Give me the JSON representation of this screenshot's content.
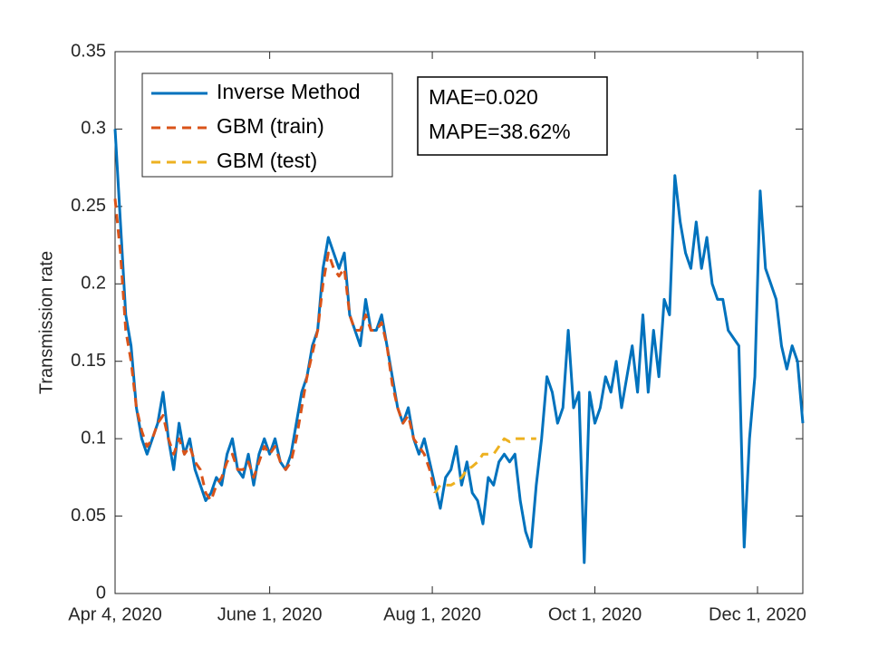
{
  "chart_data": {
    "type": "line",
    "ylabel": "Transmission rate",
    "xlim": [
      "2020-04-04",
      "2020-12-18"
    ],
    "xticks": [
      {
        "value": "2020-04-04",
        "label": "Apr 4, 2020"
      },
      {
        "value": "2020-06-01",
        "label": "June 1, 2020"
      },
      {
        "value": "2020-08-01",
        "label": "Aug 1, 2020"
      },
      {
        "value": "2020-10-01",
        "label": "Oct 1, 2020"
      },
      {
        "value": "2020-12-01",
        "label": "Dec 1, 2020"
      }
    ],
    "ylim": [
      0,
      0.35
    ],
    "yticks": [
      0,
      0.05,
      0.1,
      0.15,
      0.2,
      0.25,
      0.3,
      0.35
    ],
    "grid": false,
    "legend": "upper left",
    "annotations": [
      "MAE=0.020",
      "MAPE=38.62%"
    ],
    "series": [
      {
        "name": "Inverse Method",
        "color": "#0072BD",
        "dash": false,
        "x": [
          "2020-04-04",
          "2020-04-06",
          "2020-04-08",
          "2020-04-10",
          "2020-04-12",
          "2020-04-14",
          "2020-04-16",
          "2020-04-18",
          "2020-04-20",
          "2020-04-22",
          "2020-04-24",
          "2020-04-26",
          "2020-04-28",
          "2020-04-30",
          "2020-05-02",
          "2020-05-04",
          "2020-05-06",
          "2020-05-08",
          "2020-05-10",
          "2020-05-12",
          "2020-05-14",
          "2020-05-16",
          "2020-05-18",
          "2020-05-20",
          "2020-05-22",
          "2020-05-24",
          "2020-05-26",
          "2020-05-28",
          "2020-05-30",
          "2020-06-01",
          "2020-06-03",
          "2020-06-05",
          "2020-06-07",
          "2020-06-09",
          "2020-06-11",
          "2020-06-13",
          "2020-06-15",
          "2020-06-17",
          "2020-06-19",
          "2020-06-21",
          "2020-06-23",
          "2020-06-25",
          "2020-06-27",
          "2020-06-29",
          "2020-07-01",
          "2020-07-03",
          "2020-07-05",
          "2020-07-07",
          "2020-07-09",
          "2020-07-11",
          "2020-07-13",
          "2020-07-15",
          "2020-07-17",
          "2020-07-19",
          "2020-07-21",
          "2020-07-23",
          "2020-07-25",
          "2020-07-27",
          "2020-07-29",
          "2020-07-31",
          "2020-08-02",
          "2020-08-04",
          "2020-08-06",
          "2020-08-08",
          "2020-08-10",
          "2020-08-12",
          "2020-08-14",
          "2020-08-16",
          "2020-08-18",
          "2020-08-20",
          "2020-08-22",
          "2020-08-24",
          "2020-08-26",
          "2020-08-28",
          "2020-08-30",
          "2020-09-01",
          "2020-09-03",
          "2020-09-05",
          "2020-09-07",
          "2020-09-09",
          "2020-09-11",
          "2020-09-13",
          "2020-09-15",
          "2020-09-17",
          "2020-09-19",
          "2020-09-21",
          "2020-09-23",
          "2020-09-25",
          "2020-09-27",
          "2020-09-29",
          "2020-10-01",
          "2020-10-03",
          "2020-10-05",
          "2020-10-07",
          "2020-10-09",
          "2020-10-11",
          "2020-10-13",
          "2020-10-15",
          "2020-10-17",
          "2020-10-19",
          "2020-10-21",
          "2020-10-23",
          "2020-10-25",
          "2020-10-27",
          "2020-10-29",
          "2020-10-31",
          "2020-11-02",
          "2020-11-04",
          "2020-11-06",
          "2020-11-08",
          "2020-11-10",
          "2020-11-12",
          "2020-11-14",
          "2020-11-16",
          "2020-11-18",
          "2020-11-20",
          "2020-11-22",
          "2020-11-24",
          "2020-11-26",
          "2020-11-28",
          "2020-11-30",
          "2020-12-02",
          "2020-12-04",
          "2020-12-06",
          "2020-12-08",
          "2020-12-10",
          "2020-12-12",
          "2020-12-14",
          "2020-12-16",
          "2020-12-18"
        ],
        "values": [
          0.3,
          0.24,
          0.18,
          0.16,
          0.12,
          0.1,
          0.09,
          0.1,
          0.11,
          0.13,
          0.1,
          0.08,
          0.11,
          0.09,
          0.1,
          0.08,
          0.07,
          0.06,
          0.065,
          0.075,
          0.07,
          0.09,
          0.1,
          0.08,
          0.075,
          0.09,
          0.07,
          0.09,
          0.1,
          0.09,
          0.1,
          0.085,
          0.08,
          0.09,
          0.11,
          0.13,
          0.14,
          0.16,
          0.17,
          0.21,
          0.23,
          0.22,
          0.21,
          0.22,
          0.18,
          0.17,
          0.16,
          0.19,
          0.17,
          0.17,
          0.18,
          0.16,
          0.14,
          0.12,
          0.11,
          0.12,
          0.1,
          0.09,
          0.1,
          0.085,
          0.07,
          0.055,
          0.075,
          0.08,
          0.095,
          0.07,
          0.085,
          0.065,
          0.06,
          0.045,
          0.075,
          0.07,
          0.085,
          0.09,
          0.085,
          0.09,
          0.06,
          0.04,
          0.03,
          0.07,
          0.1,
          0.14,
          0.13,
          0.11,
          0.12,
          0.17,
          0.12,
          0.13,
          0.02,
          0.13,
          0.11,
          0.12,
          0.14,
          0.13,
          0.15,
          0.12,
          0.14,
          0.16,
          0.13,
          0.18,
          0.13,
          0.17,
          0.14,
          0.19,
          0.18,
          0.27,
          0.24,
          0.22,
          0.21,
          0.24,
          0.21,
          0.23,
          0.2,
          0.19,
          0.19,
          0.17,
          0.165,
          0.16,
          0.03,
          0.1,
          0.14,
          0.26,
          0.21,
          0.2,
          0.19,
          0.16,
          0.145,
          0.16,
          0.15,
          0.11
        ]
      },
      {
        "name": "GBM (train)",
        "color": "#D95319",
        "dash": true,
        "x": [
          "2020-04-04",
          "2020-04-06",
          "2020-04-08",
          "2020-04-10",
          "2020-04-12",
          "2020-04-14",
          "2020-04-16",
          "2020-04-18",
          "2020-04-20",
          "2020-04-22",
          "2020-04-24",
          "2020-04-26",
          "2020-04-28",
          "2020-04-30",
          "2020-05-02",
          "2020-05-04",
          "2020-05-06",
          "2020-05-08",
          "2020-05-10",
          "2020-05-12",
          "2020-05-14",
          "2020-05-16",
          "2020-05-18",
          "2020-05-20",
          "2020-05-22",
          "2020-05-24",
          "2020-05-26",
          "2020-05-28",
          "2020-05-30",
          "2020-06-01",
          "2020-06-03",
          "2020-06-05",
          "2020-06-07",
          "2020-06-09",
          "2020-06-11",
          "2020-06-13",
          "2020-06-15",
          "2020-06-17",
          "2020-06-19",
          "2020-06-21",
          "2020-06-23",
          "2020-06-25",
          "2020-06-27",
          "2020-06-29",
          "2020-07-01",
          "2020-07-03",
          "2020-07-05",
          "2020-07-07",
          "2020-07-09",
          "2020-07-11",
          "2020-07-13",
          "2020-07-15",
          "2020-07-17",
          "2020-07-19",
          "2020-07-21",
          "2020-07-23",
          "2020-07-25",
          "2020-07-27",
          "2020-07-29",
          "2020-07-31",
          "2020-08-02"
        ],
        "values": [
          0.255,
          0.22,
          0.17,
          0.15,
          0.12,
          0.105,
          0.095,
          0.1,
          0.11,
          0.115,
          0.1,
          0.09,
          0.1,
          0.09,
          0.095,
          0.085,
          0.08,
          0.065,
          0.06,
          0.07,
          0.075,
          0.085,
          0.09,
          0.08,
          0.08,
          0.085,
          0.075,
          0.085,
          0.095,
          0.09,
          0.095,
          0.085,
          0.08,
          0.085,
          0.1,
          0.12,
          0.14,
          0.155,
          0.17,
          0.2,
          0.22,
          0.21,
          0.205,
          0.21,
          0.18,
          0.17,
          0.17,
          0.18,
          0.17,
          0.17,
          0.175,
          0.16,
          0.135,
          0.12,
          0.11,
          0.115,
          0.1,
          0.095,
          0.09,
          0.08,
          0.065
        ]
      },
      {
        "name": "GBM (test)",
        "color": "#EDB120",
        "dash": true,
        "x": [
          "2020-08-02",
          "2020-08-04",
          "2020-08-06",
          "2020-08-08",
          "2020-08-10",
          "2020-08-12",
          "2020-08-14",
          "2020-08-16",
          "2020-08-18",
          "2020-08-20",
          "2020-08-22",
          "2020-08-24",
          "2020-08-26",
          "2020-08-28",
          "2020-08-30",
          "2020-09-01",
          "2020-09-03",
          "2020-09-05",
          "2020-09-07",
          "2020-09-09"
        ],
        "values": [
          0.065,
          0.07,
          0.07,
          0.07,
          0.072,
          0.075,
          0.08,
          0.082,
          0.085,
          0.09,
          0.09,
          0.09,
          0.095,
          0.1,
          0.098,
          0.1,
          0.1,
          0.1,
          0.1,
          0.1
        ]
      }
    ]
  }
}
